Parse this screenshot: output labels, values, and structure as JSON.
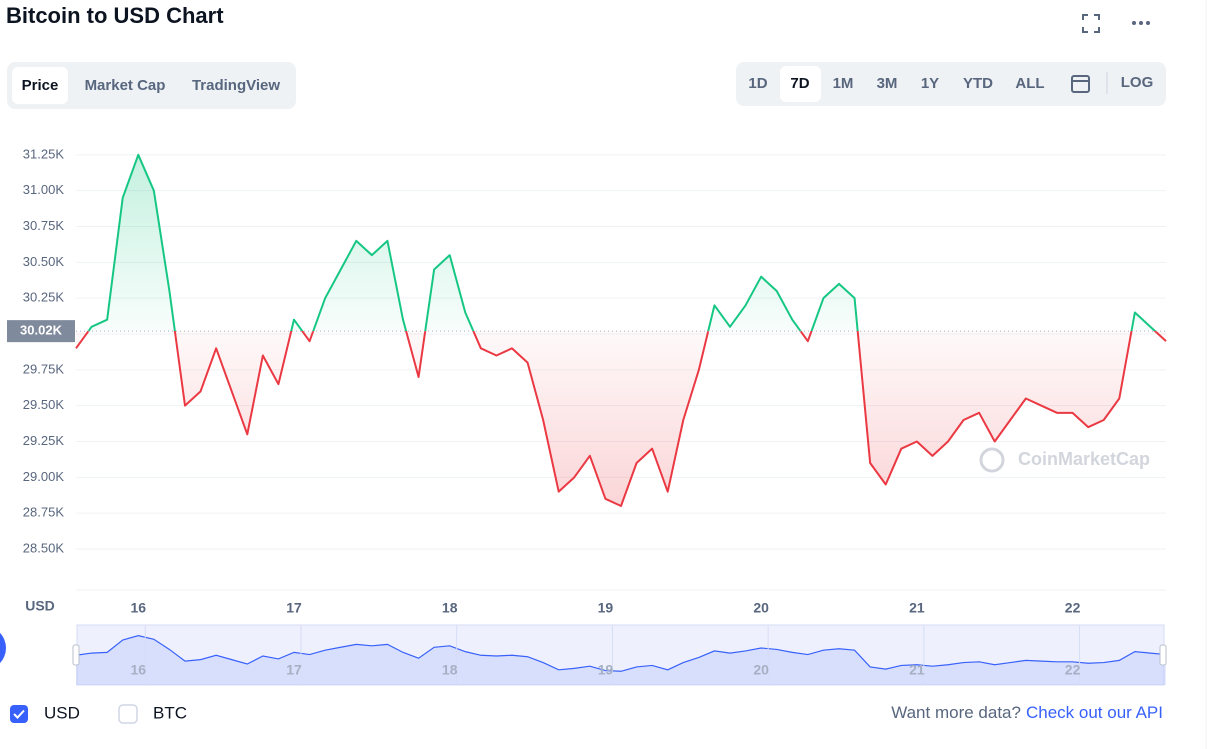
{
  "header": {
    "title": "Bitcoin to USD Chart"
  },
  "tabs": [
    "Price",
    "Market Cap",
    "TradingView"
  ],
  "ranges": [
    "1D",
    "7D",
    "1M",
    "3M",
    "1Y",
    "YTD",
    "ALL"
  ],
  "log_button": "LOG",
  "currencies": [
    "USD",
    "BTC"
  ],
  "footer": {
    "prompt": "Want more data?",
    "link": "Check out our API"
  },
  "watermark": "CoinMarketCap",
  "chart_data": {
    "type": "line",
    "y_label": "USD",
    "x": [
      15.6,
      15.7,
      15.8,
      15.9,
      16.0,
      16.1,
      16.2,
      16.3,
      16.4,
      16.5,
      16.6,
      16.7,
      16.8,
      16.9,
      17.0,
      17.1,
      17.2,
      17.3,
      17.4,
      17.5,
      17.6,
      17.7,
      17.8,
      17.9,
      18.0,
      18.1,
      18.2,
      18.3,
      18.4,
      18.5,
      18.6,
      18.7,
      18.8,
      18.9,
      19.0,
      19.1,
      19.2,
      19.3,
      19.4,
      19.5,
      19.6,
      19.7,
      19.8,
      19.9,
      20.0,
      20.1,
      20.2,
      20.3,
      20.4,
      20.5,
      20.6,
      20.7,
      20.8,
      20.9,
      21.0,
      21.1,
      21.2,
      21.3,
      21.4,
      21.5,
      21.6,
      21.7,
      21.8,
      21.9,
      22.0,
      22.1,
      22.2,
      22.3,
      22.4,
      22.5,
      22.6
    ],
    "series": [
      {
        "name": "USD",
        "values": [
          29900,
          30050,
          30100,
          30950,
          31250,
          31000,
          30300,
          29500,
          29600,
          29900,
          29600,
          29300,
          29850,
          29650,
          30100,
          29950,
          30250,
          30450,
          30650,
          30550,
          30650,
          30100,
          29700,
          30450,
          30550,
          30150,
          29900,
          29850,
          29900,
          29800,
          29400,
          28900,
          29000,
          29150,
          28850,
          28800,
          29100,
          29200,
          28900,
          29400,
          29750,
          30200,
          30050,
          30200,
          30400,
          30300,
          30100,
          29950,
          30250,
          30350,
          30250,
          29100,
          28950,
          29200,
          29250,
          29150,
          29250,
          29400,
          29450,
          29250,
          29400,
          29550,
          29500,
          29450,
          29450,
          29350,
          29400,
          29550,
          30150,
          30050,
          29950
        ]
      }
    ],
    "up_color": "#16c784",
    "down_color": "#ea3943",
    "baseline": {
      "value": 30020,
      "label": "30.02K"
    },
    "xlim": [
      15.6,
      22.6
    ],
    "xticks": [
      16,
      17,
      18,
      19,
      20,
      21,
      22
    ],
    "ylim": [
      28200,
      31500
    ],
    "yticks": [
      {
        "value": 28500,
        "label": "28.50K"
      },
      {
        "value": 28750,
        "label": "28.75K"
      },
      {
        "value": 29000,
        "label": "29.00K"
      },
      {
        "value": 29250,
        "label": "29.25K"
      },
      {
        "value": 29500,
        "label": "29.50K"
      },
      {
        "value": 29750,
        "label": "29.75K"
      },
      {
        "value": 30000,
        "label": "30.00K"
      },
      {
        "value": 30250,
        "label": "30.25K"
      },
      {
        "value": 30500,
        "label": "30.50K"
      },
      {
        "value": 30750,
        "label": "30.75K"
      },
      {
        "value": 31000,
        "label": "31.00K"
      },
      {
        "value": 31250,
        "label": "31.25K"
      }
    ],
    "grid": true
  }
}
